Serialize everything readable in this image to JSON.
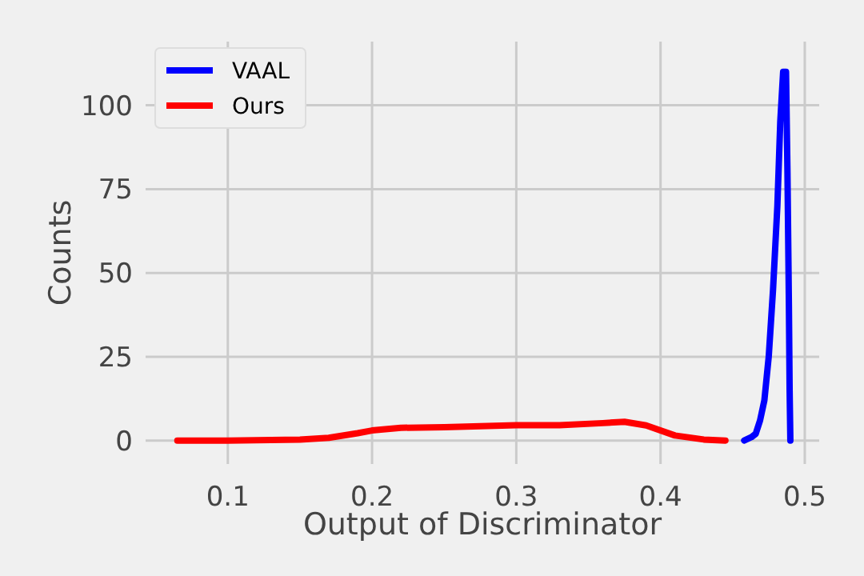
{
  "chart_data": {
    "type": "line",
    "xlabel": "Output of Discriminator",
    "ylabel": "Counts",
    "xlim": [
      0.043,
      0.51
    ],
    "ylim": [
      -7,
      119
    ],
    "xticks": [
      0.1,
      0.2,
      0.3,
      0.4,
      0.5
    ],
    "yticks": [
      0,
      25,
      50,
      75,
      100
    ],
    "grid": true,
    "legend": "top left",
    "line_style": "solid",
    "marker": "none",
    "series": [
      {
        "name": "VAAL",
        "color": "#0000ff",
        "x": [
          0.458,
          0.463,
          0.466,
          0.469,
          0.472,
          0.475,
          0.478,
          0.481,
          0.483,
          0.485,
          0.487,
          0.488,
          0.489,
          0.4895,
          0.49
        ],
        "values": [
          0,
          1,
          2,
          6,
          12,
          25,
          45,
          70,
          95,
          110,
          110,
          80,
          40,
          15,
          0
        ]
      },
      {
        "name": "Ours",
        "color": "#ff0000",
        "x": [
          0.065,
          0.1,
          0.15,
          0.17,
          0.19,
          0.2,
          0.22,
          0.25,
          0.3,
          0.33,
          0.36,
          0.375,
          0.39,
          0.41,
          0.43,
          0.445
        ],
        "values": [
          0,
          0,
          0.3,
          0.8,
          2.2,
          3,
          3.8,
          4,
          4.6,
          4.6,
          5.2,
          5.6,
          4.5,
          1.5,
          0.3,
          0
        ]
      }
    ]
  }
}
